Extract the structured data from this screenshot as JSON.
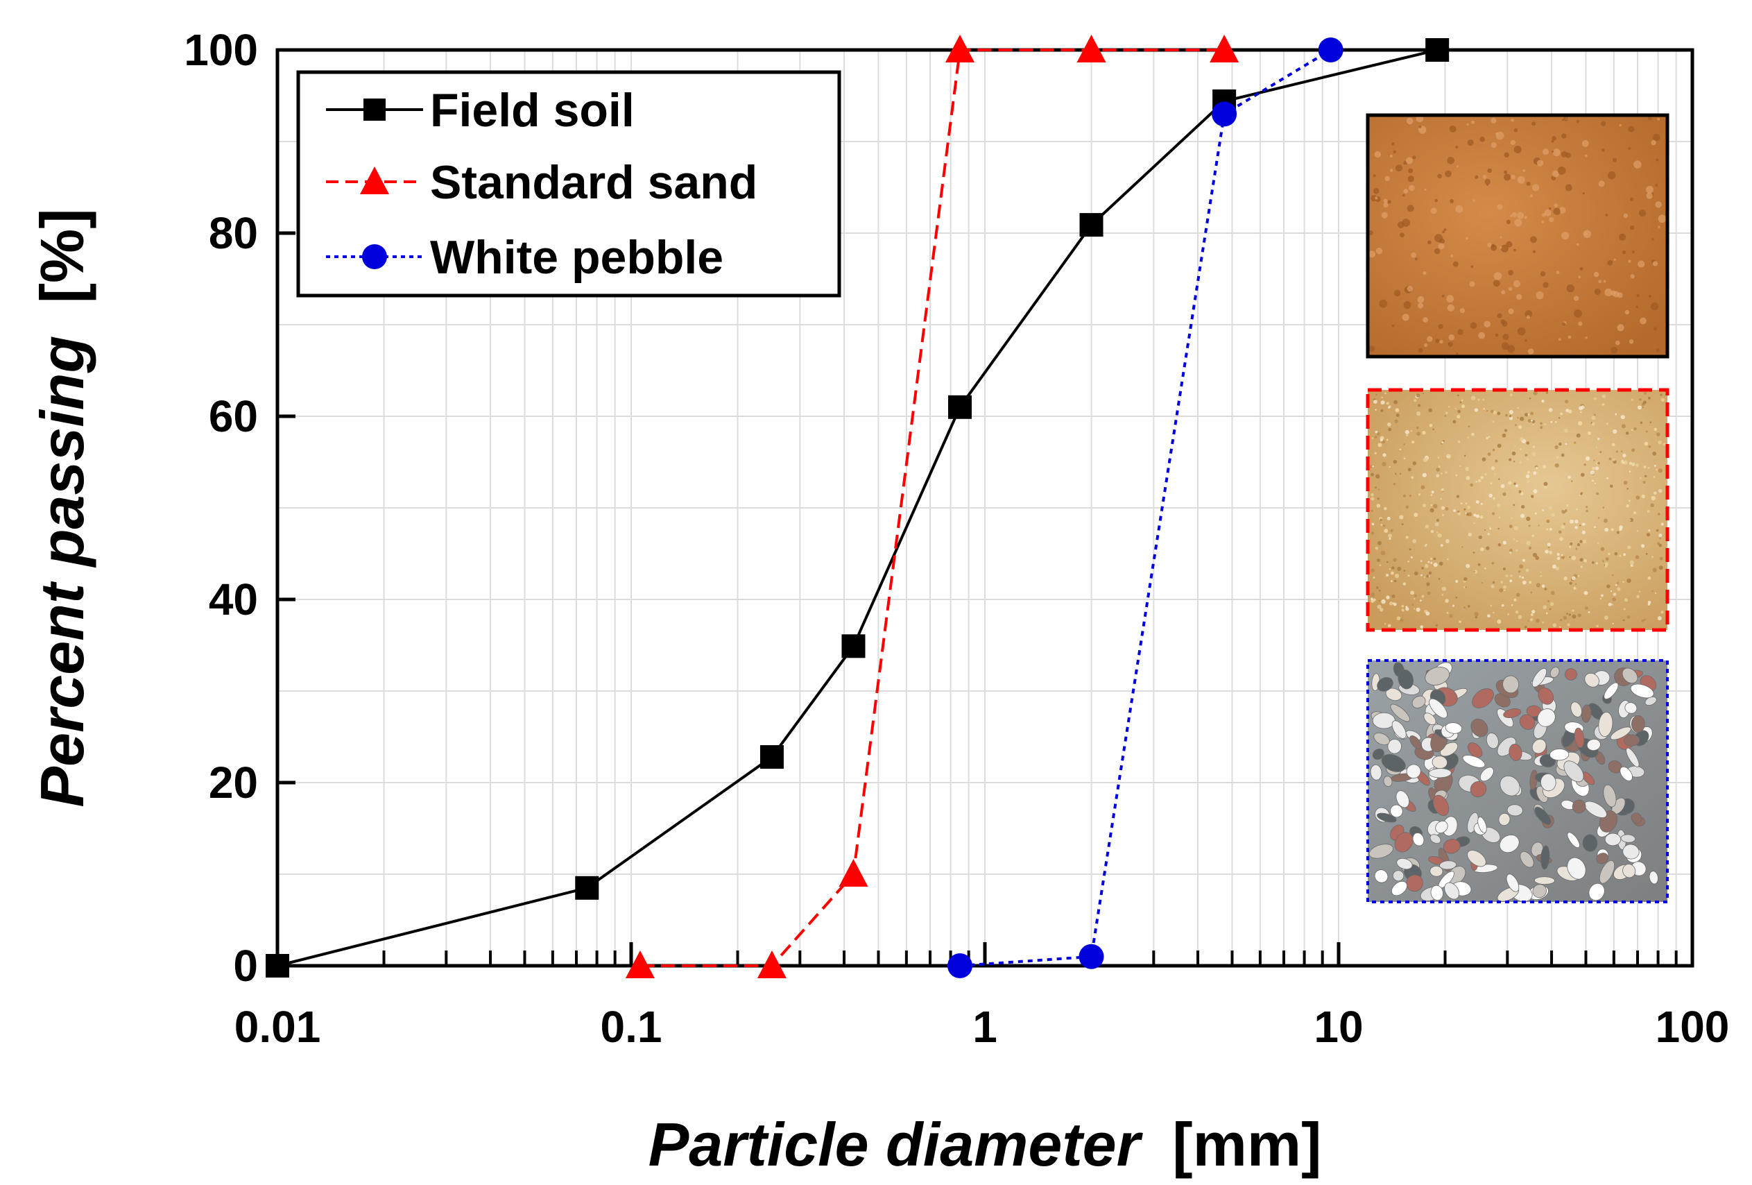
{
  "chart_data": {
    "type": "line",
    "xlabel_italic": "Particle diameter",
    "xlabel_unit": "[mm]",
    "ylabel_italic": "Percent passing",
    "ylabel_unit": "[%]",
    "x_scale": "log",
    "xlim": [
      0.01,
      100
    ],
    "ylim": [
      0,
      100
    ],
    "x_ticks": [
      0.01,
      0.1,
      1,
      10,
      100
    ],
    "x_tick_labels": [
      "0.01",
      "0.1",
      "1",
      "10",
      "100"
    ],
    "y_ticks": [
      0,
      20,
      40,
      60,
      80,
      100
    ],
    "y_tick_labels": [
      "0",
      "20",
      "40",
      "60",
      "80",
      "100"
    ],
    "grid": true,
    "legend_position": "top-left",
    "series": [
      {
        "name": "Field soil",
        "color": "#000000",
        "marker": "square",
        "line": "solid",
        "x": [
          0.01,
          0.075,
          0.25,
          0.425,
          0.85,
          2.0,
          4.75,
          19.0
        ],
        "y": [
          0,
          8.5,
          22.8,
          34.9,
          61.0,
          80.9,
          94.4,
          100
        ]
      },
      {
        "name": "Standard sand",
        "color": "#ff0000",
        "marker": "triangle",
        "line": "dashed",
        "x": [
          0.106,
          0.25,
          0.425,
          0.85,
          2.0,
          4.75
        ],
        "y": [
          0,
          0,
          10,
          100,
          100,
          100
        ]
      },
      {
        "name": "White pebble",
        "color": "#0000dd",
        "marker": "circle",
        "line": "dotted",
        "x": [
          0.85,
          2.0,
          4.75,
          9.5
        ],
        "y": [
          0,
          1,
          93,
          100
        ]
      }
    ],
    "insets": [
      {
        "name": "field-soil-photo",
        "border": "solid",
        "border_color": "#000000",
        "fill": "#c87a3a"
      },
      {
        "name": "standard-sand-photo",
        "border": "dashed",
        "border_color": "#ff0000",
        "fill": "#d9b77e"
      },
      {
        "name": "white-pebble-photo",
        "border": "dotted",
        "border_color": "#0000dd",
        "fill": "#d8d8d8"
      }
    ]
  }
}
